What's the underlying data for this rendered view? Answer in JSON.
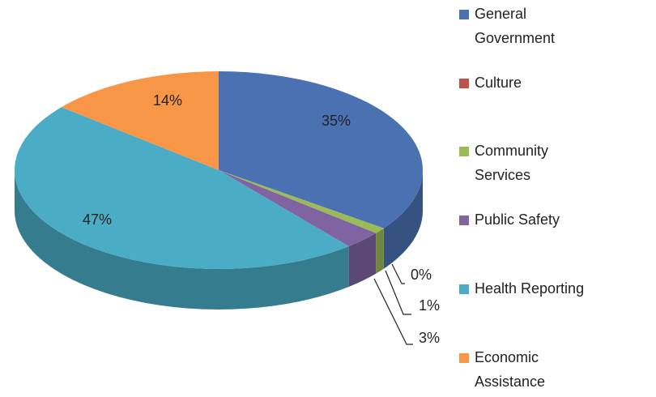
{
  "chart_data": {
    "type": "pie3d",
    "categories": [
      "General Government",
      "Culture",
      "Community Services",
      "Public Safety",
      "Health Reporting",
      "Economic Assistance"
    ],
    "values": [
      35,
      0,
      1,
      3,
      47,
      14
    ],
    "value_labels": [
      "35%",
      "0%",
      "1%",
      "3%",
      "47%",
      "14%"
    ],
    "colors": [
      "#4a72b2",
      "#c0504d",
      "#9bbb59",
      "#8064a2",
      "#4bacc6",
      "#f79646"
    ],
    "legend": "right"
  }
}
